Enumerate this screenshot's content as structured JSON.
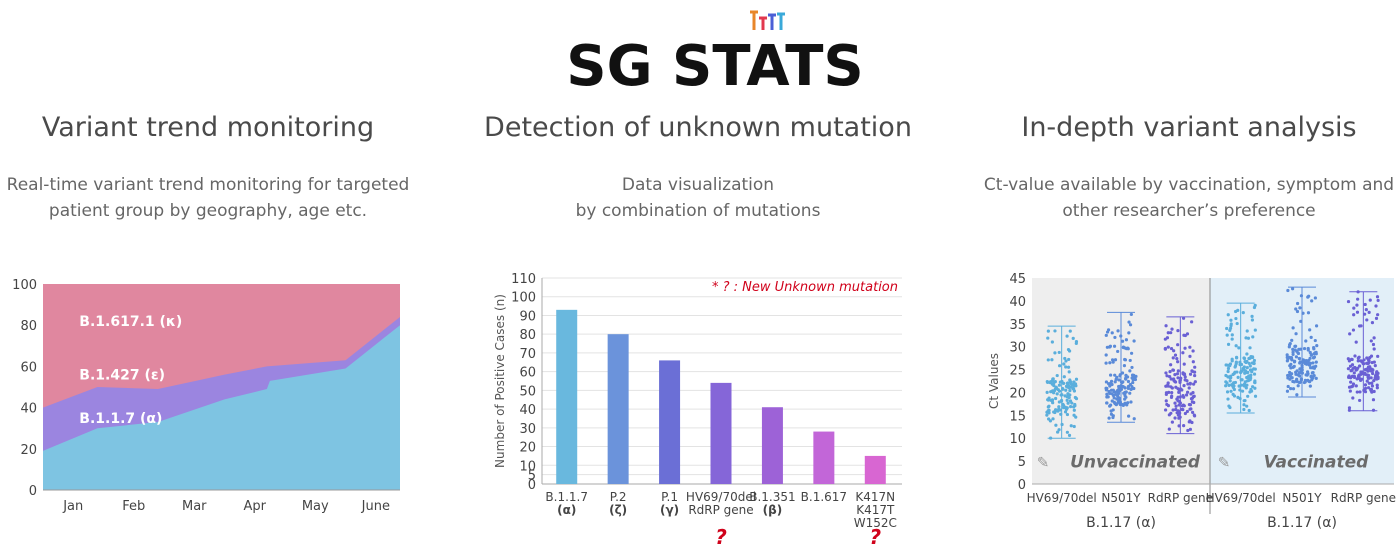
{
  "logo": {
    "text": "SG STATS"
  },
  "columns": [
    {
      "title": "Variant trend monitoring",
      "desc": [
        "Real-time variant trend monitoring for targeted",
        "patient group by geography, age etc."
      ]
    },
    {
      "title": "Detection of unknown mutation",
      "desc": [
        "Data visualization",
        "by combination of mutations"
      ]
    },
    {
      "title": "In-depth variant analysis",
      "desc": [
        "Ct-value available by vaccination, symptom and",
        "other researcher’s preference"
      ]
    }
  ],
  "colors": {
    "alpha": "#7ec4e2",
    "epsilon": "#9b85e0",
    "kappa": "#e0879f",
    "red": "#d0021b"
  },
  "chart_data": [
    {
      "type": "area",
      "stacked_to": 100,
      "x": [
        "Jan",
        "Feb",
        "Mar",
        "Apr",
        "May",
        "June"
      ],
      "ylim": [
        0,
        100
      ],
      "yticks": [
        0,
        20,
        40,
        60,
        80,
        100
      ],
      "series": [
        {
          "name": "B.1.1.7 (α)",
          "points": [
            [
              0,
              19
            ],
            [
              0.9,
              30
            ],
            [
              1.9,
              33
            ],
            [
              3,
              44
            ],
            [
              3.7,
              49
            ],
            [
              3.75,
              53
            ],
            [
              5,
              59
            ],
            [
              5.9,
              80
            ]
          ]
        },
        {
          "name": "B.1.427 (ε)",
          "points": [
            [
              0,
              40
            ],
            [
              0.9,
              50
            ],
            [
              1.9,
              49
            ],
            [
              3,
              56
            ],
            [
              3.7,
              60
            ],
            [
              5,
              63
            ],
            [
              5.9,
              84
            ]
          ]
        },
        {
          "name": "B.1.617.1 (κ)",
          "points": [
            [
              0,
              100
            ],
            [
              5.9,
              100
            ]
          ]
        }
      ]
    },
    {
      "type": "bar",
      "ylabel": "Number of Positive Cases (n)",
      "ylim": [
        0,
        110
      ],
      "yticks": [
        0,
        5,
        10,
        20,
        30,
        40,
        50,
        60,
        70,
        80,
        90,
        100,
        110
      ],
      "annotation": "* ? : New Unknown mutation",
      "categories": [
        {
          "lines": [
            "B.1.1.7",
            "(α)"
          ],
          "value": 93,
          "color": "#69b8de",
          "unknown": false
        },
        {
          "lines": [
            "P.2",
            "(ζ)"
          ],
          "value": 80,
          "color": "#6b93db",
          "unknown": false
        },
        {
          "lines": [
            "P.1",
            "(γ)"
          ],
          "value": 66,
          "color": "#6b6fd6",
          "unknown": false
        },
        {
          "lines": [
            "HV69/70del",
            "RdRP gene"
          ],
          "value": 54,
          "color": "#8566d8",
          "unknown": true
        },
        {
          "lines": [
            "B.1.351",
            "(β)"
          ],
          "value": 41,
          "color": "#9d62d7",
          "unknown": false
        },
        {
          "lines": [
            "B.1.617"
          ],
          "value": 28,
          "color": "#c266d8",
          "unknown": false
        },
        {
          "lines": [
            "K417N",
            "K417T",
            "W152C"
          ],
          "value": 15,
          "color": "#d866d2",
          "unknown": true
        }
      ],
      "unknown_marker": "?"
    },
    {
      "type": "scatter",
      "ylabel": "Ct Values",
      "ylim": [
        0,
        45
      ],
      "yticks": [
        0,
        5,
        10,
        15,
        20,
        25,
        30,
        35,
        40,
        45
      ],
      "groups": [
        {
          "name": "Unvaccinated",
          "group_label": "B.1.17 (α)",
          "categories": [
            {
              "label": "HV69/70del",
              "min": 10,
              "max": 34.5,
              "q1": 15,
              "q3": 23,
              "color": "#5aaedc"
            },
            {
              "label": "N501Y",
              "min": 13.5,
              "max": 37.5,
              "q1": 17,
              "q3": 24,
              "color": "#5a8ad8"
            },
            {
              "label": "RdRP gene",
              "min": 11,
              "max": 36.5,
              "q1": 15,
              "q3": 25,
              "color": "#6a60d4"
            }
          ]
        },
        {
          "name": "Vaccinated",
          "group_label": "B.1.17 (α)",
          "categories": [
            {
              "label": "HV69/70del",
              "min": 15.5,
              "max": 39.5,
              "q1": 20,
              "q3": 28,
              "color": "#5aaedc"
            },
            {
              "label": "N501Y",
              "min": 19,
              "max": 43,
              "q1": 22,
              "q3": 30,
              "color": "#5a8ad8"
            },
            {
              "label": "RdRP gene",
              "min": 16,
              "max": 42,
              "q1": 20,
              "q3": 28,
              "color": "#6a60d4"
            }
          ]
        }
      ]
    }
  ]
}
